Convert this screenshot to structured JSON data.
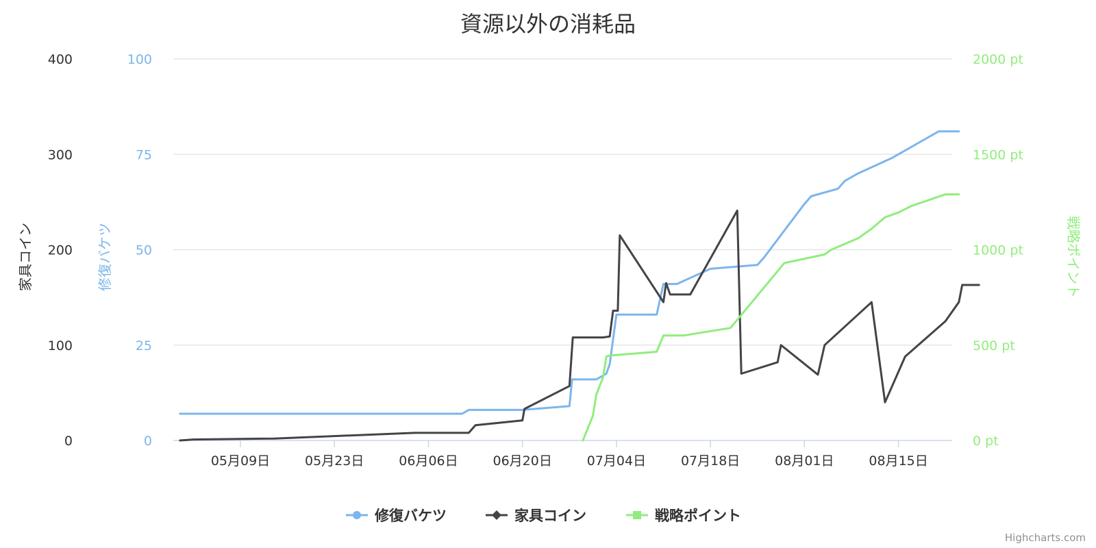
{
  "chart_data": {
    "type": "line",
    "title": "資源以外の消耗品",
    "x_labels": [
      "05月09日",
      "05月23日",
      "06月06日",
      "06月20日",
      "07月04日",
      "07月18日",
      "08月01日",
      "08月15日"
    ],
    "x_label_days": [
      8,
      22,
      36,
      50,
      64,
      78,
      92,
      106
    ],
    "x_range_days": [
      -2,
      114
    ],
    "y_axes": [
      {
        "id": "coin",
        "title": "家具コイン",
        "min": 0,
        "max": 400,
        "ticks": [
          "0",
          "100",
          "200",
          "300",
          "400"
        ],
        "color": "#333333"
      },
      {
        "id": "bucket",
        "title": "修復バケツ",
        "min": 0,
        "max": 100,
        "ticks": [
          "0",
          "25",
          "50",
          "75",
          "100"
        ],
        "color": "#7cb5ec"
      },
      {
        "id": "point",
        "title": "戦略ポイント",
        "min": 0,
        "max": 2000,
        "ticks": [
          "0 pt",
          "500 pt",
          "1000 pt",
          "1500 pt",
          "2000 pt"
        ],
        "color": "#90ed7d"
      }
    ],
    "series": [
      {
        "name": "修復バケツ",
        "axis": "bucket",
        "color": "#7cb5ec",
        "marker": "circle",
        "points": [
          [
            -1,
            7
          ],
          [
            41,
            7
          ],
          [
            42,
            8
          ],
          [
            48,
            8
          ],
          [
            50,
            8
          ],
          [
            57,
            9
          ],
          [
            57.4,
            16
          ],
          [
            61,
            16
          ],
          [
            62.5,
            17.5
          ],
          [
            63,
            20
          ],
          [
            64,
            33
          ],
          [
            70,
            33
          ],
          [
            71,
            41
          ],
          [
            73,
            41
          ],
          [
            78,
            45
          ],
          [
            85,
            46
          ],
          [
            86,
            48
          ],
          [
            92,
            62
          ],
          [
            93,
            64
          ],
          [
            97,
            66
          ],
          [
            98,
            68
          ],
          [
            100,
            70
          ],
          [
            105,
            74
          ],
          [
            109,
            78
          ],
          [
            112,
            81
          ],
          [
            115,
            81
          ]
        ]
      },
      {
        "name": "家具コイン",
        "axis": "coin",
        "color": "#434348",
        "marker": "diamond",
        "points": [
          [
            -1,
            0
          ],
          [
            1,
            1
          ],
          [
            13,
            2
          ],
          [
            34,
            8
          ],
          [
            42,
            8
          ],
          [
            43,
            16
          ],
          [
            50,
            21
          ],
          [
            50.3,
            33
          ],
          [
            57,
            57
          ],
          [
            57.5,
            108
          ],
          [
            62,
            108
          ],
          [
            63,
            109
          ],
          [
            63.5,
            136
          ],
          [
            64.2,
            136
          ],
          [
            64.5,
            215
          ],
          [
            71,
            145
          ],
          [
            71.4,
            165
          ],
          [
            72,
            153
          ],
          [
            75,
            153
          ],
          [
            82,
            241
          ],
          [
            82.6,
            70
          ],
          [
            88,
            82
          ],
          [
            88.5,
            100
          ],
          [
            94,
            69
          ],
          [
            95,
            100
          ],
          [
            102,
            145
          ],
          [
            104,
            40
          ],
          [
            107,
            88
          ],
          [
            113,
            125
          ],
          [
            115,
            145
          ],
          [
            115.5,
            163
          ],
          [
            118,
            163
          ]
        ]
      },
      {
        "name": "戦略ポイント",
        "axis": "point",
        "color": "#90ed7d",
        "marker": "square",
        "points": [
          [
            59,
            0
          ],
          [
            60.5,
            130
          ],
          [
            61,
            240
          ],
          [
            62,
            330
          ],
          [
            62.5,
            440
          ],
          [
            63,
            445
          ],
          [
            64,
            448
          ],
          [
            70,
            465
          ],
          [
            71,
            550
          ],
          [
            74,
            550
          ],
          [
            81,
            590
          ],
          [
            89,
            930
          ],
          [
            95,
            975
          ],
          [
            96,
            1000
          ],
          [
            100,
            1060
          ],
          [
            102,
            1110
          ],
          [
            104,
            1170
          ],
          [
            106,
            1195
          ],
          [
            108,
            1230
          ],
          [
            113,
            1290
          ],
          [
            115,
            1290
          ]
        ]
      }
    ],
    "legend": {
      "position": "bottom-center",
      "items": [
        "修復バケツ",
        "家具コイン",
        "戦略ポイント"
      ]
    }
  },
  "credits": "Highcharts.com"
}
